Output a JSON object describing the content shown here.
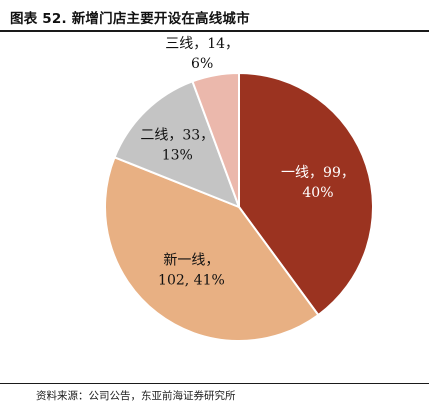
{
  "figure": {
    "title": "图表 52. 新增门店主要开设在高线城市",
    "source": "资料来源：公司公告，东亚前海证券研究所"
  },
  "chart_data": {
    "type": "pie",
    "title": "",
    "slices": [
      {
        "name": "一线",
        "value": 99,
        "percent": "40%",
        "color": "#9B3320",
        "label_line1": "一线，99，",
        "label_line2": "40%",
        "label_color": "#ffffff"
      },
      {
        "name": "新一线",
        "value": 102,
        "percent": "41%",
        "color": "#E8B083",
        "label_line1": "新一线，",
        "label_line2": "102, 41%",
        "label_color": "#111111"
      },
      {
        "name": "二线",
        "value": 33,
        "percent": "13%",
        "color": "#C4C4C4",
        "label_line1": "二线，33，",
        "label_line2": "13%",
        "label_color": "#111111"
      },
      {
        "name": "三线",
        "value": 14,
        "percent": "6%",
        "color": "#EBB8AC",
        "label_line1": "三线，14，",
        "label_line2": "6%",
        "label_color": "#111111"
      }
    ],
    "start_angle_deg": 0,
    "direction": "clockwise",
    "legend": "none"
  }
}
